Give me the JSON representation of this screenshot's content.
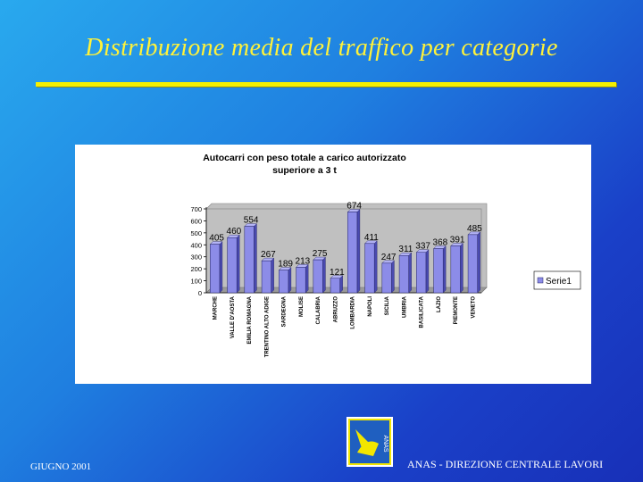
{
  "slide": {
    "title": "Distribuzione media del traffico per categorie",
    "footer_left": "GIUGNO 2001",
    "footer_right": "ANAS - DIREZIONE CENTRALE LAVORI",
    "logo_text": "ANAS",
    "colors": {
      "title": "#fff23a",
      "rule": "#f4f000",
      "bar": "#8c8ce8"
    }
  },
  "chart_data": {
    "type": "bar",
    "title": "Autocarri con peso totale a carico autorizzato superiore a 3 t",
    "title_lines": [
      "Autocarri con peso totale a carico autorizzato",
      "superiore a 3 t"
    ],
    "categories": [
      "MARCHE",
      "VALLE D'AOSTA",
      "EMILIA ROMAGNA",
      "TRENTINO ALTO ADIGE",
      "SARDEGNA",
      "MOLISE",
      "CALABRIA",
      "ABRUZZO",
      "LOMBARDIA",
      "NAPOLI",
      "SICILIA",
      "UMBRIA",
      "BASILICATA",
      "LAZIO",
      "PIEMONTE",
      "VENETO"
    ],
    "series": [
      {
        "name": "Serie1",
        "values": [
          405,
          460,
          554,
          267,
          189,
          213,
          275,
          121,
          674,
          411,
          247,
          311,
          337,
          368,
          391,
          485
        ]
      }
    ],
    "ylim": [
      0,
      700
    ],
    "yticks": [
      0,
      100,
      200,
      300,
      400,
      500,
      600,
      700
    ],
    "grid": false,
    "legend_position": "right"
  }
}
